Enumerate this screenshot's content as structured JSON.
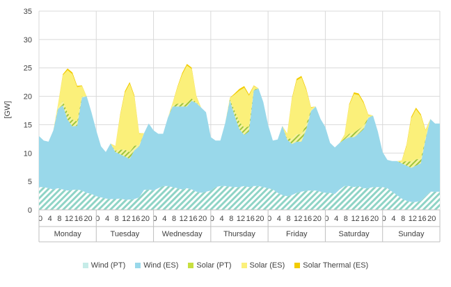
{
  "chart_data": {
    "type": "area",
    "stacked": true,
    "ylabel": "[GW]",
    "ylim": [
      0,
      35
    ],
    "yticks": [
      0,
      5,
      10,
      15,
      20,
      25,
      30,
      35
    ],
    "grid": "horizontal and vertical (day separators)",
    "legend_position": "bottom",
    "days": [
      "Monday",
      "Tuesday",
      "Wednesday",
      "Thursday",
      "Friday",
      "Saturday",
      "Sunday"
    ],
    "hour_tick_labels": [
      "0",
      "4",
      "8",
      "12",
      "16",
      "20"
    ],
    "x_hours": [
      0,
      2,
      4,
      6,
      8,
      10,
      12,
      14,
      16,
      18,
      20,
      22
    ],
    "colors": {
      "wind_pt": "#c6ece8",
      "wind_es": "#99d8ea",
      "solar_pt": "#c7df3f",
      "solar_es": "#fbf07a",
      "solar_thermal_es": "#f2cc00",
      "grid": "#d9d9d9",
      "axis_text": "#404040"
    },
    "series": [
      {
        "name": "Wind (PT)",
        "values": [
          [
            4.0,
            4.0,
            3.8,
            3.6,
            3.8,
            3.6,
            3.4,
            3.5,
            3.6,
            3.4,
            3.0,
            2.8
          ],
          [
            2.4,
            2.2,
            2.0,
            1.9,
            1.9,
            2.0,
            1.8,
            1.8,
            1.9,
            2.2,
            3.5,
            3.6
          ],
          [
            3.4,
            3.8,
            4.2,
            4.2,
            4.0,
            3.8,
            3.6,
            3.8,
            3.6,
            3.2,
            3.0,
            3.2
          ],
          [
            3.4,
            4.0,
            4.2,
            4.2,
            4.1,
            4.0,
            4.0,
            4.2,
            4.0,
            4.2,
            4.2,
            4.0
          ],
          [
            3.8,
            3.6,
            3.0,
            2.6,
            2.4,
            2.6,
            3.0,
            3.2,
            3.4,
            3.4,
            3.4,
            3.2
          ],
          [
            3.0,
            3.0,
            2.8,
            3.6,
            4.2,
            4.2,
            4.0,
            4.2,
            3.8,
            3.8,
            4.0,
            4.0
          ],
          [
            4.0,
            3.8,
            3.2,
            2.6,
            2.0,
            1.6,
            1.4,
            1.4,
            1.6,
            2.4,
            3.2,
            3.2
          ]
        ]
      },
      {
        "name": "Wind (ES)",
        "values": [
          [
            9.0,
            8.2,
            8.2,
            10.4,
            14.0,
            14.8,
            12.5,
            11.2,
            11.2,
            16.4,
            17.0,
            14.4
          ],
          [
            11.6,
            9.0,
            8.2,
            9.8,
            8.3,
            7.8,
            7.6,
            7.2,
            8.6,
            9.0,
            10.0,
            11.6
          ],
          [
            10.6,
            9.6,
            9.2,
            12.0,
            14.2,
            14.4,
            14.6,
            14.4,
            15.6,
            15.6,
            15.0,
            14.0
          ],
          [
            9.4,
            8.2,
            8.0,
            11.0,
            15.2,
            12.6,
            10.2,
            9.0,
            9.8,
            16.8,
            17.2,
            15.0
          ],
          [
            11.2,
            8.6,
            9.4,
            12.2,
            10.0,
            9.0,
            9.0,
            8.8,
            10.8,
            14.0,
            14.8,
            12.8
          ],
          [
            11.6,
            8.8,
            8.2,
            8.2,
            8.2,
            8.6,
            8.8,
            9.2,
            10.4,
            12.4,
            12.6,
            9.8
          ],
          [
            6.2,
            5.0,
            5.4,
            6.0,
            6.2,
            6.2,
            6.0,
            6.4,
            6.6,
            10.0,
            12.8,
            12.0
          ]
        ]
      },
      {
        "name": "Solar (PT)",
        "values": [
          [
            0,
            0,
            0,
            0,
            0.2,
            0.8,
            1.2,
            1.2,
            0.8,
            0.2,
            0,
            0
          ],
          [
            0,
            0,
            0,
            0,
            0.2,
            0.8,
            1.2,
            1.2,
            0.8,
            0.2,
            0,
            0
          ],
          [
            0,
            0,
            0,
            0,
            0.2,
            0.5,
            0.6,
            0.6,
            0.4,
            0.1,
            0,
            0
          ],
          [
            0,
            0,
            0,
            0,
            0.2,
            0.9,
            1.3,
            1.3,
            0.9,
            0.2,
            0,
            0
          ],
          [
            0,
            0,
            0,
            0,
            0.2,
            0.9,
            1.3,
            1.3,
            0.9,
            0.2,
            0,
            0
          ],
          [
            0,
            0,
            0,
            0,
            0.2,
            0.6,
            0.8,
            0.8,
            0.6,
            0.1,
            0,
            0
          ],
          [
            0,
            0,
            0,
            0,
            0.2,
            0.8,
            1.1,
            1.1,
            0.8,
            0.2,
            0,
            0
          ]
        ]
      },
      {
        "name": "Solar (ES)",
        "values": [
          [
            0,
            0,
            0,
            0,
            0.6,
            4.5,
            7.5,
            8.0,
            6.0,
            1.8,
            0,
            0
          ],
          [
            0,
            0,
            0,
            0,
            0.8,
            6.0,
            10.0,
            12.0,
            8.6,
            2.0,
            0,
            0
          ],
          [
            0,
            0,
            0,
            0,
            0.4,
            2.8,
            5.0,
            6.6,
            5.2,
            1.0,
            0,
            0
          ],
          [
            0,
            0,
            0,
            0,
            0.2,
            2.8,
            5.5,
            7.0,
            5.4,
            0.6,
            0,
            0
          ],
          [
            0,
            0,
            0,
            0,
            0.8,
            7.0,
            9.5,
            10.0,
            6.0,
            0.4,
            0,
            0
          ],
          [
            0,
            0,
            0,
            0,
            0.6,
            5.0,
            6.8,
            6.0,
            4.0,
            0.4,
            0,
            0
          ],
          [
            0,
            0,
            0,
            0,
            0.2,
            2.6,
            7.6,
            8.8,
            7.6,
            1.4,
            0,
            0
          ]
        ]
      },
      {
        "name": "Solar Thermal (ES)",
        "values": [
          [
            0,
            0,
            0,
            0,
            0.05,
            0.2,
            0.3,
            0.3,
            0.25,
            0.1,
            0,
            0
          ],
          [
            0,
            0,
            0,
            0,
            0.05,
            0.2,
            0.3,
            0.3,
            0.25,
            0.1,
            0,
            0
          ],
          [
            0,
            0,
            0,
            0,
            0.05,
            0.2,
            0.3,
            0.3,
            0.25,
            0.1,
            0,
            0
          ],
          [
            0,
            0,
            0,
            0,
            0.05,
            0.2,
            0.3,
            0.3,
            0.25,
            0.1,
            0,
            0
          ],
          [
            0,
            0,
            0,
            0,
            0.05,
            0.2,
            0.3,
            0.3,
            0.25,
            0.1,
            0,
            0
          ],
          [
            0,
            0,
            0,
            0,
            0.05,
            0.2,
            0.3,
            0.3,
            0.25,
            0.1,
            0,
            0
          ],
          [
            0,
            0,
            0,
            0,
            0.05,
            0.2,
            0.3,
            0.3,
            0.25,
            0.1,
            0,
            0
          ]
        ]
      }
    ]
  }
}
